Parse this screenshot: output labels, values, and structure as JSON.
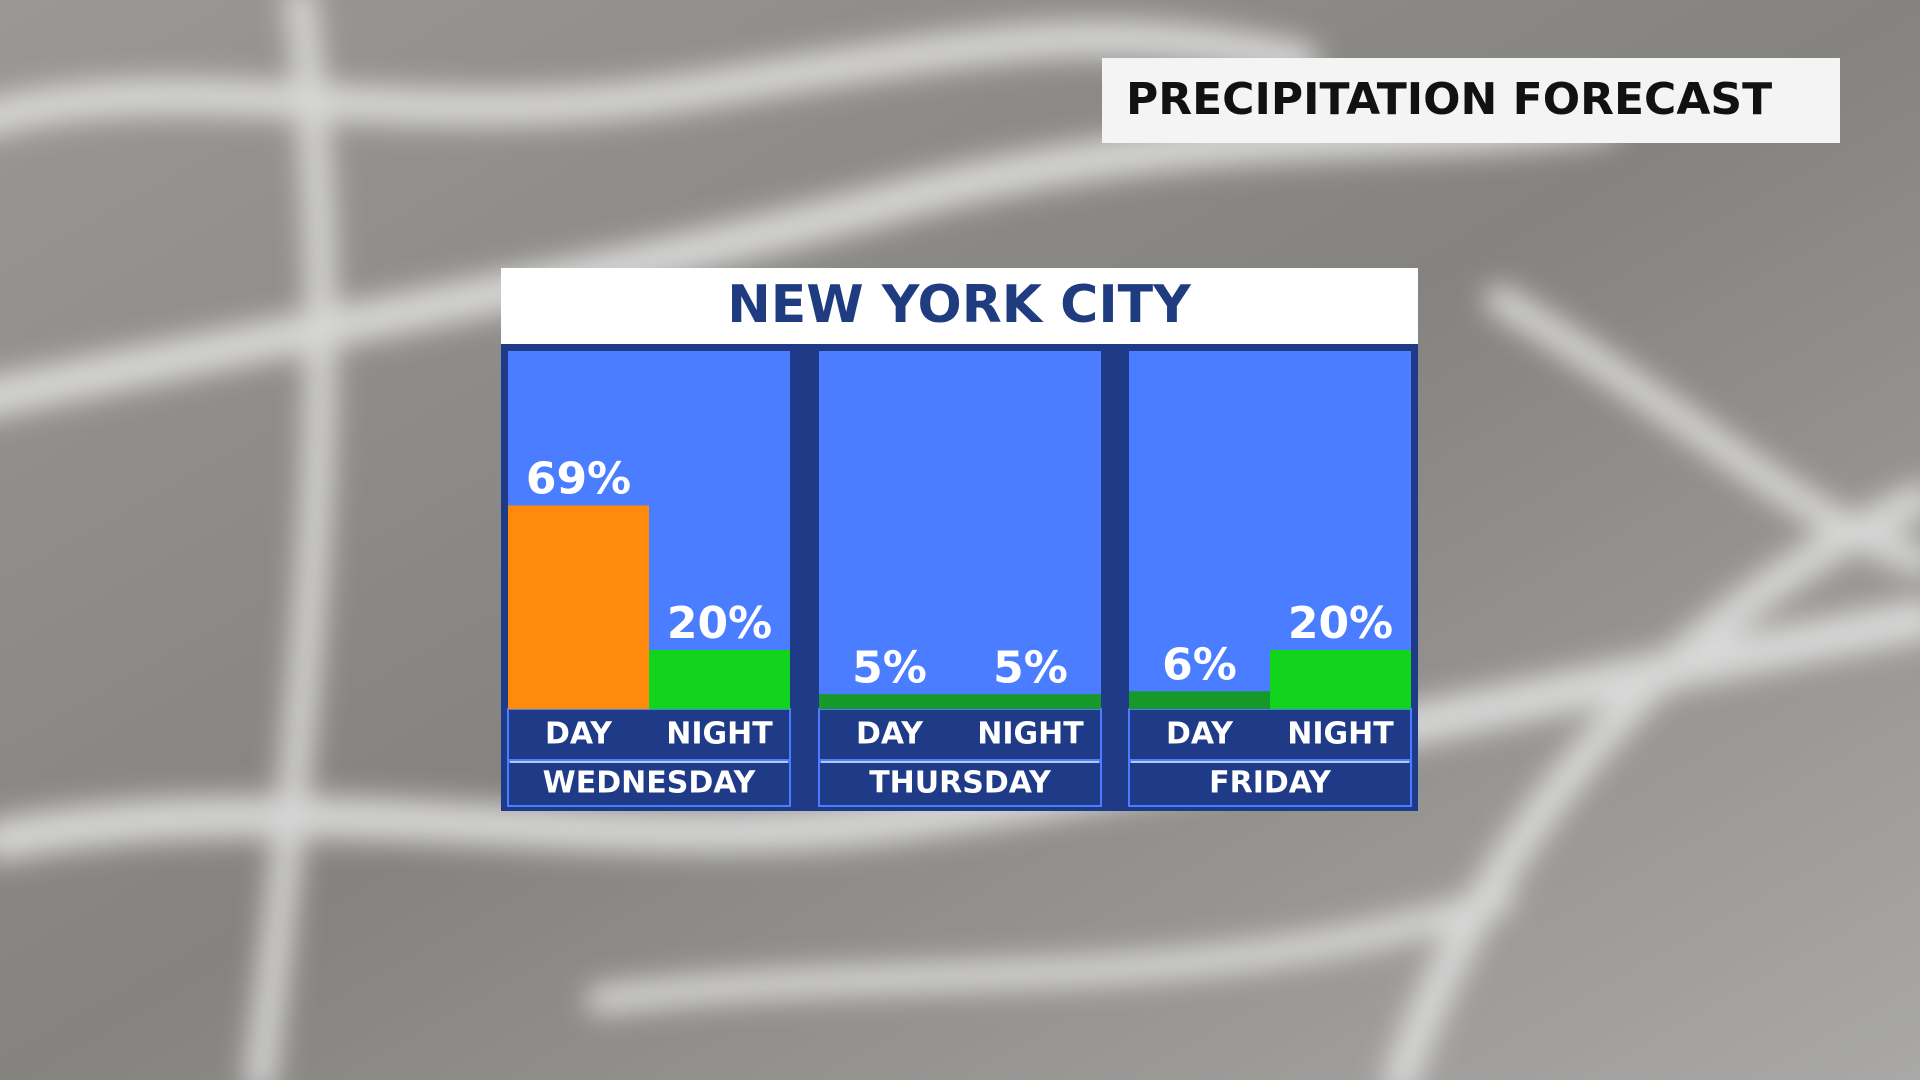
{
  "header": {
    "title": "PRECIPITATION FORECAST"
  },
  "chart_data": {
    "type": "bar",
    "title": "NEW YORK CITY",
    "groups": [
      {
        "name": "WEDNESDAY",
        "categories": [
          "DAY",
          "NIGHT"
        ],
        "values": [
          69,
          20
        ],
        "value_labels": [
          "69%",
          "20%"
        ],
        "colors": [
          "#ff8a0c",
          "#12d41c"
        ]
      },
      {
        "name": "THURSDAY",
        "categories": [
          "DAY",
          "NIGHT"
        ],
        "values": [
          5,
          5
        ],
        "value_labels": [
          "5%",
          "5%"
        ],
        "colors": [
          "#17992a",
          "#17992a"
        ]
      },
      {
        "name": "FRIDAY",
        "categories": [
          "DAY",
          "NIGHT"
        ],
        "values": [
          6,
          20
        ],
        "value_labels": [
          "6%",
          "20%"
        ],
        "colors": [
          "#17992a",
          "#12d41c"
        ]
      }
    ]
  }
}
